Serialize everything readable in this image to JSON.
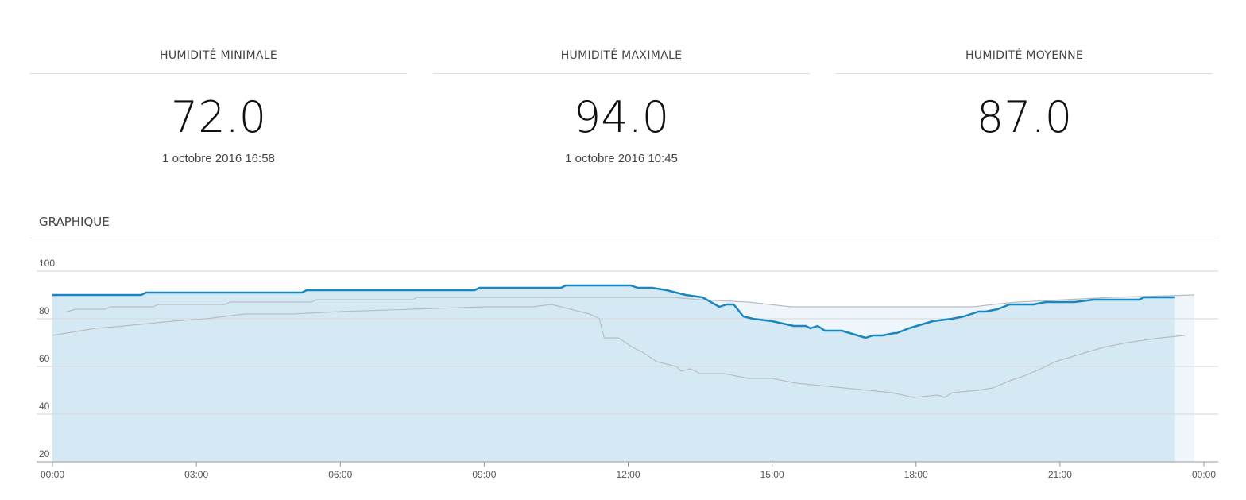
{
  "stats": [
    {
      "title": "HUMIDITÉ MINIMALE",
      "value": "72.0",
      "date": "1 octobre 2016 16:58"
    },
    {
      "title": "HUMIDITÉ MAXIMALE",
      "value": "94.0",
      "date": "1 octobre 2016 10:45"
    },
    {
      "title": "HUMIDITÉ MOYENNE",
      "value": "87.0"
    }
  ],
  "section_title": "GRAPHIQUE",
  "chart_data": {
    "type": "line",
    "xlim": [
      0,
      24
    ],
    "xticks": [
      {
        "value": 0,
        "label": "00:00"
      },
      {
        "value": 3,
        "label": "03:00"
      },
      {
        "value": 6,
        "label": "06:00"
      },
      {
        "value": 9,
        "label": "09:00"
      },
      {
        "value": 12,
        "label": "12:00"
      },
      {
        "value": 15,
        "label": "15:00"
      },
      {
        "value": 18,
        "label": "18:00"
      },
      {
        "value": 21,
        "label": "21:00"
      },
      {
        "value": 24,
        "label": "00:00"
      }
    ],
    "ylim": [
      20,
      100
    ],
    "yticks": [
      20,
      40,
      60,
      80,
      100
    ],
    "grid": true,
    "series": [
      {
        "color": "#b9bdc1",
        "fill": "#eef6fb",
        "x": [
          0.3,
          0.5,
          1.1,
          1.2,
          2.1,
          2.2,
          3.6,
          3.7,
          5.4,
          5.5,
          7.5,
          7.6,
          10.4,
          12.9,
          13.5,
          14.5,
          15.4,
          19.2,
          19.6,
          20.1,
          21.1,
          22.1,
          23.8
        ],
        "values": [
          83,
          84,
          84,
          85,
          85,
          86,
          86,
          87,
          87,
          88,
          88,
          89,
          89,
          89,
          88,
          87,
          85,
          85,
          86,
          87,
          88,
          89,
          90
        ]
      },
      {
        "color": "#1a86c0",
        "fill": "#d5e9f5",
        "x": [
          0,
          1.85,
          1.95,
          5.2,
          5.3,
          8.8,
          8.9,
          10.6,
          10.7,
          12.05,
          12.2,
          12.5,
          12.8,
          13.2,
          13.55,
          13.9,
          14.05,
          14.2,
          14.4,
          14.6,
          15.0,
          15.45,
          15.7,
          15.8,
          15.95,
          16.1,
          16.45,
          16.95,
          17.1,
          17.3,
          17.55,
          17.6,
          17.85,
          18.35,
          18.75,
          19.0,
          19.3,
          19.45,
          19.7,
          19.95,
          20.45,
          20.7,
          21.2,
          21.3,
          21.7,
          21.8,
          22.65,
          22.75,
          23.4
        ],
        "values": [
          90,
          90,
          91,
          91,
          92,
          92,
          93,
          93,
          94,
          94,
          93,
          93,
          92,
          90,
          89,
          85,
          86,
          86,
          81,
          80,
          79,
          77,
          77,
          76,
          77,
          75,
          75,
          72,
          73,
          73,
          74,
          74,
          76,
          79,
          80,
          81,
          83,
          83,
          84,
          86,
          86,
          87,
          87,
          87,
          88,
          88,
          88,
          89,
          89
        ]
      },
      {
        "color": "#b9bdc1",
        "x": [
          0,
          0.3,
          0.6,
          0.9,
          1.5,
          2,
          2.5,
          3.2,
          4,
          5,
          6,
          7.5,
          9,
          10,
          10.4,
          10.8,
          11.2,
          11.4,
          11.5,
          11.8,
          12.1,
          12.3,
          12.6,
          12.8,
          13,
          13.1,
          13.3,
          13.5,
          14,
          14.5,
          15,
          15.5,
          16,
          16.5,
          17,
          17.5,
          17.95,
          18.45,
          18.6,
          18.75,
          19.3,
          19.6,
          19.95,
          20.25,
          20.6,
          20.9,
          21.4,
          21.9,
          22.4,
          22.75,
          23.1,
          23.6
        ],
        "values": [
          73,
          74,
          75,
          76,
          77,
          78,
          79,
          80,
          82,
          82,
          83,
          84,
          85,
          85,
          86,
          84,
          82,
          80,
          72,
          72,
          68,
          66,
          62,
          61,
          60,
          58,
          59,
          57,
          57,
          55,
          55,
          53,
          52,
          51,
          50,
          49,
          47,
          48,
          47,
          49,
          50,
          51,
          54,
          56,
          59,
          62,
          65,
          68,
          70,
          71,
          72,
          73
        ]
      }
    ]
  }
}
